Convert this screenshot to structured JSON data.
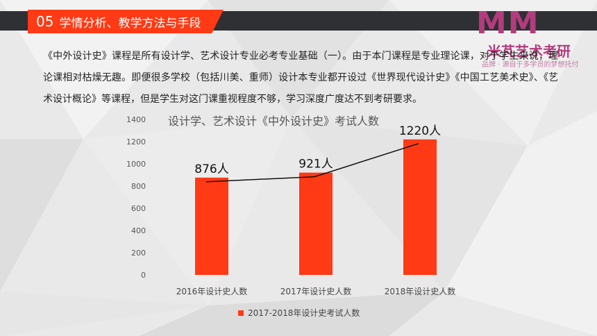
{
  "header": {
    "section_number": "05",
    "section_title": "学情分析、教学方法与手段"
  },
  "logo": {
    "mark": "MM",
    "name": "米芃艺术考研",
    "slogan": "品牌 · 源自于多学员的梦想托付"
  },
  "intro_text": "《中外设计史》课程是所有设计学、艺术设计专业必考专业基础（一）。由于本门课程是专业理论课，对于学生来说，理论课相对枯燥无趣。即便很多学校（包括川美、重师）设计本专业都开设过《世界现代设计史》《中国工艺美术史》、《艺术设计概论》等课程，但是学生对这门课重视程度不够，学习深度广度达不到考研要求。",
  "colors": {
    "accent": "#ff3a14",
    "header_bar": "#2f3033",
    "bar": "#ff3a14",
    "trend_line": "#111111"
  },
  "chart_data": {
    "type": "bar",
    "title": "设计学、艺术设计《中外设计史》考试人数",
    "categories": [
      "2016年设计史人数",
      "2017年设计史人数",
      "2018年设计史人数"
    ],
    "series": [
      {
        "name": "2017-2018年设计史考试人数",
        "values": [
          876,
          921,
          1220
        ]
      }
    ],
    "data_labels": [
      "876人",
      "921人",
      "1220人"
    ],
    "yticks": [
      "0",
      "200",
      "400",
      "600",
      "800",
      "1000",
      "1200",
      "1400"
    ],
    "ylim": [
      0,
      1400
    ],
    "trend_line": true,
    "grid": false,
    "legend_position": "bottom"
  }
}
